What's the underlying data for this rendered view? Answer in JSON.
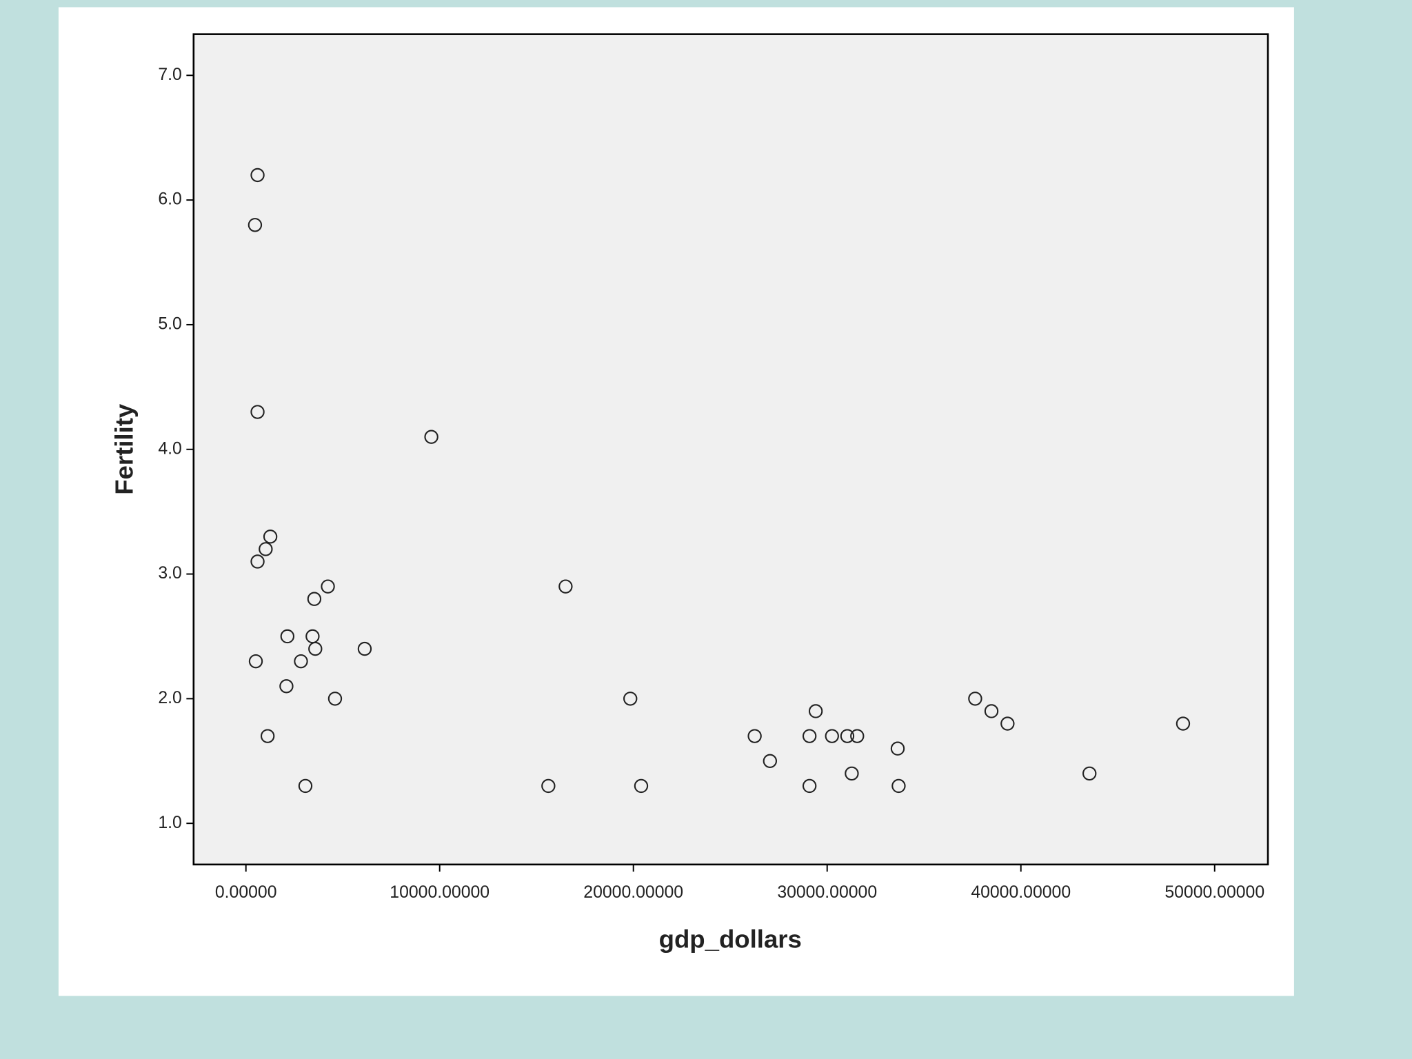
{
  "chart_data": {
    "type": "scatter",
    "x_label": "gdp_dollars",
    "y_label": "Fertility",
    "xlim": [
      -2700,
      52750
    ],
    "ylim": [
      0.67,
      7.33
    ],
    "xticks": [
      {
        "value": 0,
        "label": "0.00000"
      },
      {
        "value": 10000,
        "label": "10000.00000"
      },
      {
        "value": 20000,
        "label": "20000.00000"
      },
      {
        "value": 30000,
        "label": "30000.00000"
      },
      {
        "value": 40000,
        "label": "40000.00000"
      },
      {
        "value": 50000,
        "label": "50000.00000"
      }
    ],
    "yticks": [
      {
        "value": 1,
        "label": "1.0"
      },
      {
        "value": 2,
        "label": "2.0"
      },
      {
        "value": 3,
        "label": "3.0"
      },
      {
        "value": 4,
        "label": "4.0"
      },
      {
        "value": 5,
        "label": "5.0"
      },
      {
        "value": 6,
        "label": "6.0"
      },
      {
        "value": 7,
        "label": "7.0"
      }
    ],
    "color": "#222222",
    "background": "#f0f0f0",
    "series": [
      {
        "x": [
          600,
          470,
          600,
          9570,
          1260,
          1020,
          600,
          4230,
          16500,
          3530,
          2140,
          3440,
          6130,
          3580,
          510,
          2840,
          2090,
          4600,
          19840,
          37640,
          29410,
          38480,
          39310,
          48370,
          1120,
          26260,
          29090,
          30250,
          31040,
          31550,
          33640,
          27050,
          31270,
          43540,
          3070,
          15610,
          20400,
          29090,
          33690
        ],
        "values": [
          6.2,
          5.8,
          4.3,
          4.1,
          3.3,
          3.2,
          3.1,
          2.9,
          2.9,
          2.8,
          2.5,
          2.5,
          2.4,
          2.4,
          2.3,
          2.3,
          2.1,
          2.0,
          2.0,
          2.0,
          1.9,
          1.9,
          1.8,
          1.8,
          1.7,
          1.7,
          1.7,
          1.7,
          1.7,
          1.7,
          1.6,
          1.5,
          1.4,
          1.4,
          1.3,
          1.3,
          1.3,
          1.3,
          1.3
        ]
      }
    ]
  }
}
